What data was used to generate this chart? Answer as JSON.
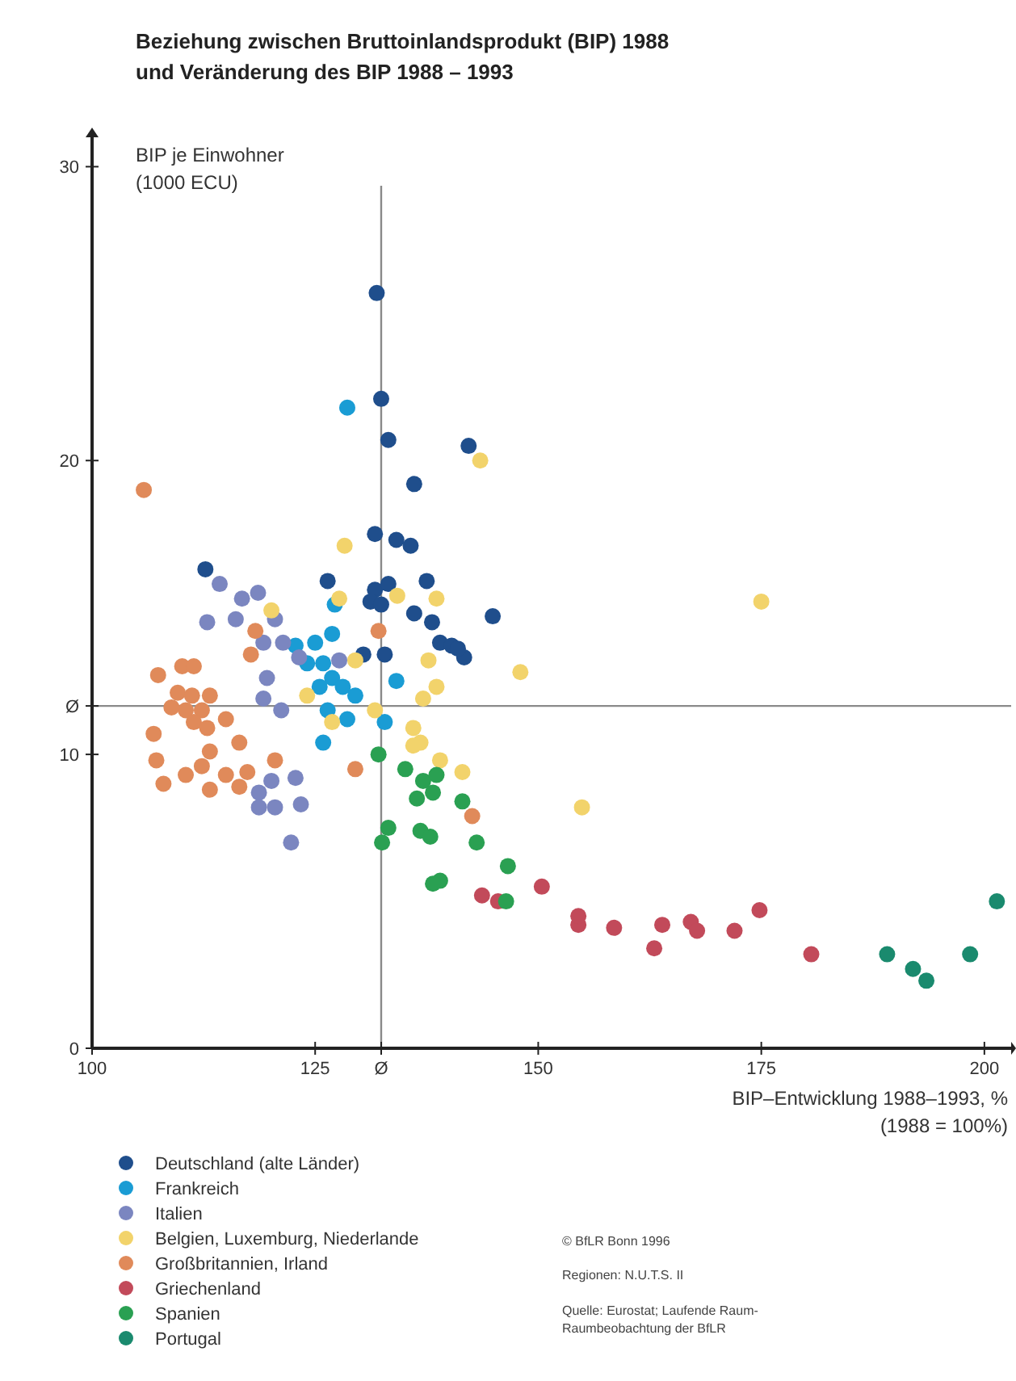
{
  "chart_data": {
    "type": "scatter",
    "title": "Beziehung zwischen Bruttoinlandsprodukt (BIP) 1988\nund Veränderung des BIP 1988 – 1993",
    "xlabel": "BIP–Entwicklung 1988–1993, %\n(1988 = 100%)",
    "ylabel": "BIP je Einwohner\n(1000 ECU)",
    "xlim": [
      100,
      203
    ],
    "xticks": [
      100,
      125,
      {
        "value": 132.4,
        "label": "Ø"
      },
      150,
      175,
      200
    ],
    "ylim": [
      0,
      31
    ],
    "yticks": [
      0,
      10,
      {
        "value": 11.65,
        "label": "Ø"
      },
      20,
      30
    ],
    "ref_lines": [
      {
        "axis": "x",
        "value": 132.4,
        "color": "#8a8a8a"
      },
      {
        "axis": "y",
        "value": 11.65,
        "color": "#8a8a8a"
      }
    ],
    "grid": false,
    "legend": "bottom left",
    "marker": "circle",
    "annotations": [
      "© BfLR Bonn 1996",
      "Regionen: N.U.T.S. II",
      "Quelle: Eurostat; Laufende Raum-\nRaumbeobachtung der BfLR"
    ],
    "series": [
      {
        "name": "Deutschland (alte Länder)",
        "color": "#1f4e8c",
        "x": [
          131.9,
          132.4,
          133.2,
          142.2,
          136.1,
          131.7,
          134.1,
          135.7,
          112.7,
          126.4,
          131.7,
          131.2,
          132.4,
          133.2,
          137.5,
          136.1,
          138.1,
          139.0,
          140.3,
          141.7,
          144.9,
          130.4,
          132.8,
          141.0
        ],
        "values": [
          25.7,
          22.1,
          20.7,
          20.5,
          19.2,
          17.5,
          17.3,
          17.1,
          16.3,
          15.9,
          15.6,
          15.2,
          15.1,
          15.8,
          15.9,
          14.8,
          14.5,
          13.8,
          13.7,
          13.3,
          14.7,
          13.4,
          13.4,
          13.6
        ]
      },
      {
        "name": "Frankreich",
        "color": "#1a9cd4",
        "x": [
          128.6,
          127.2,
          126.9,
          125.0,
          122.8,
          124.1,
          125.9,
          126.9,
          128.1,
          129.5,
          125.5,
          126.4,
          128.6,
          125.9,
          132.8,
          134.1
        ],
        "values": [
          21.8,
          15.1,
          14.1,
          13.8,
          13.7,
          13.1,
          13.1,
          12.6,
          12.3,
          12.0,
          12.3,
          11.5,
          11.2,
          10.4,
          11.1,
          12.5
        ]
      },
      {
        "name": "Italien",
        "color": "#7b86c0",
        "x": [
          114.3,
          116.8,
          118.6,
          116.1,
          112.9,
          120.5,
          121.4,
          123.2,
          119.2,
          119.6,
          119.2,
          121.2,
          118.7,
          118.7,
          120.1,
          120.5,
          122.3,
          122.8,
          123.4,
          127.7
        ],
        "values": [
          15.8,
          15.3,
          15.5,
          14.6,
          14.5,
          14.6,
          13.8,
          13.3,
          13.8,
          12.6,
          11.9,
          11.5,
          8.7,
          8.2,
          9.1,
          8.2,
          7.0,
          9.2,
          8.3,
          13.2
        ]
      },
      {
        "name": "Belgien, Luxemburg, Niederlande",
        "color": "#f2d36b",
        "x": [
          143.5,
          128.3,
          120.1,
          127.7,
          134.2,
          138.6,
          148.0,
          175.0,
          154.9,
          137.7,
          138.6,
          137.1,
          136.0,
          136.8,
          136.0,
          139.0,
          141.5,
          124.1,
          126.9,
          131.7,
          129.5
        ],
        "values": [
          20.0,
          17.1,
          14.9,
          15.3,
          15.4,
          15.3,
          12.8,
          15.2,
          8.2,
          13.2,
          12.3,
          11.9,
          10.9,
          10.4,
          10.3,
          9.8,
          9.4,
          12.0,
          11.1,
          11.5,
          13.2
        ]
      },
      {
        "name": "Großbritannien, Irland",
        "color": "#e08a5a",
        "x": [
          105.8,
          107.4,
          110.1,
          111.4,
          109.6,
          111.2,
          112.3,
          110.5,
          113.2,
          108.9,
          111.4,
          112.9,
          115.0,
          106.9,
          113.2,
          116.5,
          107.2,
          110.5,
          112.3,
          115.0,
          108.0,
          113.2,
          116.5,
          117.4,
          120.5,
          118.3,
          117.8,
          129.5,
          132.1,
          142.6
        ],
        "values": [
          19.0,
          12.7,
          13.0,
          13.0,
          12.1,
          12.0,
          11.5,
          11.5,
          12.0,
          11.6,
          11.1,
          10.9,
          11.2,
          10.7,
          10.1,
          10.4,
          9.8,
          9.3,
          9.6,
          9.3,
          9.0,
          8.8,
          8.9,
          9.4,
          9.8,
          14.2,
          13.4,
          9.5,
          14.2,
          7.9
        ]
      },
      {
        "name": "Griechenland",
        "color": "#c24a5a",
        "x": [
          143.7,
          150.4,
          154.5,
          154.5,
          158.5,
          163.9,
          163.0,
          167.1,
          167.8,
          172.0,
          174.8,
          180.6,
          145.5
        ],
        "values": [
          5.2,
          5.5,
          4.2,
          4.5,
          4.1,
          4.2,
          3.4,
          4.3,
          4.0,
          4.0,
          4.7,
          3.2,
          5.0
        ]
      },
      {
        "name": "Spanien",
        "color": "#2aa052",
        "x": [
          132.1,
          135.1,
          137.1,
          138.6,
          138.2,
          136.4,
          141.5,
          133.2,
          132.5,
          136.8,
          137.9,
          143.1,
          139.0,
          138.2,
          146.6,
          146.4
        ],
        "values": [
          10.0,
          9.5,
          9.1,
          9.3,
          8.7,
          8.5,
          8.4,
          7.5,
          7.0,
          7.4,
          7.2,
          7.0,
          5.7,
          5.6,
          6.2,
          5.0
        ]
      },
      {
        "name": "Portugal",
        "color": "#1a8a6e",
        "x": [
          189.1,
          192.0,
          193.5,
          198.4,
          201.4
        ],
        "values": [
          3.2,
          2.7,
          2.3,
          3.2,
          5.0
        ]
      }
    ]
  }
}
